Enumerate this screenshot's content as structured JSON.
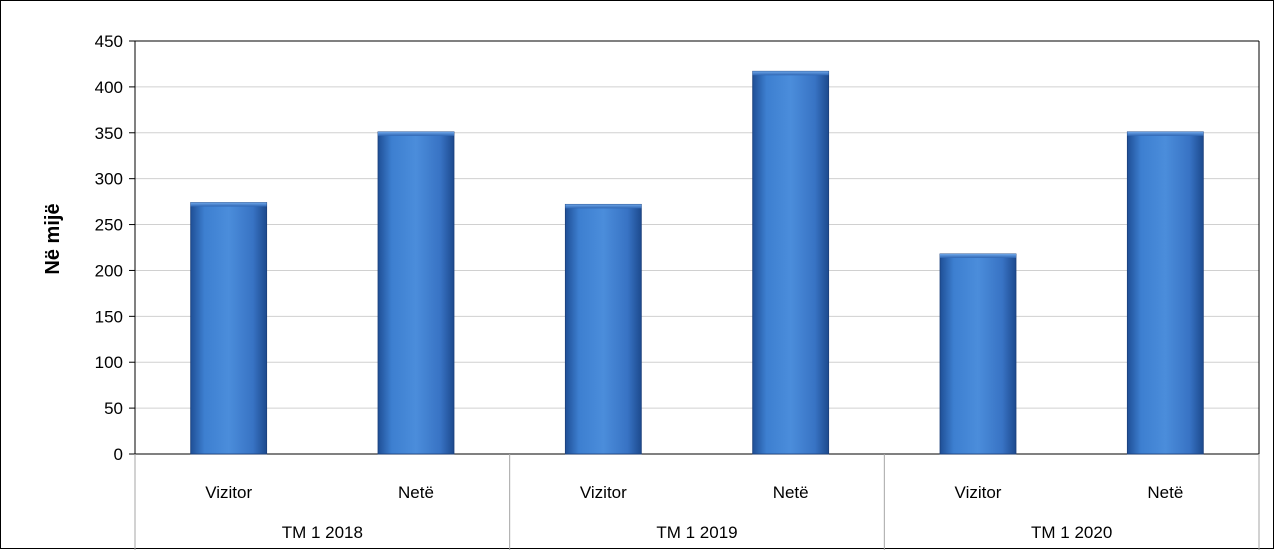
{
  "chart_data": {
    "type": "bar",
    "title": "",
    "xlabel": "",
    "ylabel": "Në mijë",
    "ylim": [
      0,
      450
    ],
    "yticks": [
      0,
      50,
      100,
      150,
      200,
      250,
      300,
      350,
      400,
      450
    ],
    "grid": true,
    "legend": "none",
    "groups": [
      "TM 1 2018",
      "TM 1 2019",
      "TM 1 2020"
    ],
    "categories": [
      "Vizitor",
      "Netë",
      "Vizitor",
      "Netë",
      "Vizitor",
      "Netë"
    ],
    "values": [
      274,
      351,
      272,
      417,
      218,
      351
    ],
    "bar_color": "#3b78c9"
  }
}
